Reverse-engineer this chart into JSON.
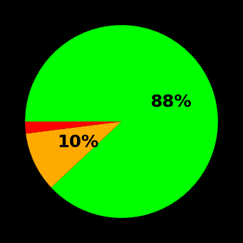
{
  "slices": [
    88,
    10,
    2
  ],
  "colors": [
    "#00ff00",
    "#ffaa00",
    "#ff0000"
  ],
  "labels": [
    "88%",
    "10%",
    ""
  ],
  "background_color": "#000000",
  "text_color": "#000000",
  "startangle": 180,
  "figsize": [
    3.5,
    3.5
  ],
  "dpi": 100,
  "label_fontsize": 18,
  "label_fontweight": "bold",
  "label_radii": [
    0.55,
    0.45,
    0
  ],
  "label_angles_deg": [
    0,
    220,
    0
  ]
}
